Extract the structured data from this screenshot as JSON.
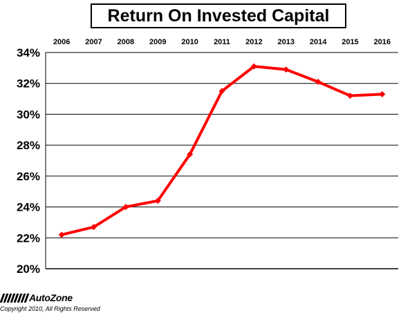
{
  "chart_data": {
    "type": "line",
    "title": "Return On Invested Capital",
    "x": [
      "2006",
      "2007",
      "2008",
      "2009",
      "2010",
      "2011",
      "2012",
      "2013",
      "2014",
      "2015",
      "2016"
    ],
    "series": [
      {
        "values": [
          22.2,
          22.7,
          24.0,
          24.4,
          27.4,
          31.5,
          33.1,
          32.9,
          32.1,
          31.2,
          31.3
        ]
      }
    ],
    "y_ticks": [
      "20%",
      "22%",
      "24%",
      "26%",
      "28%",
      "30%",
      "32%",
      "34%"
    ],
    "ylim": [
      20,
      34
    ],
    "x_axis_position": "top",
    "grid": true,
    "colors": {
      "line": "#ff0000",
      "grid": "#000000"
    }
  },
  "footer": {
    "logo_text": "AutoZone",
    "copyright": "Copyright 2010, All Rights Reserved"
  }
}
